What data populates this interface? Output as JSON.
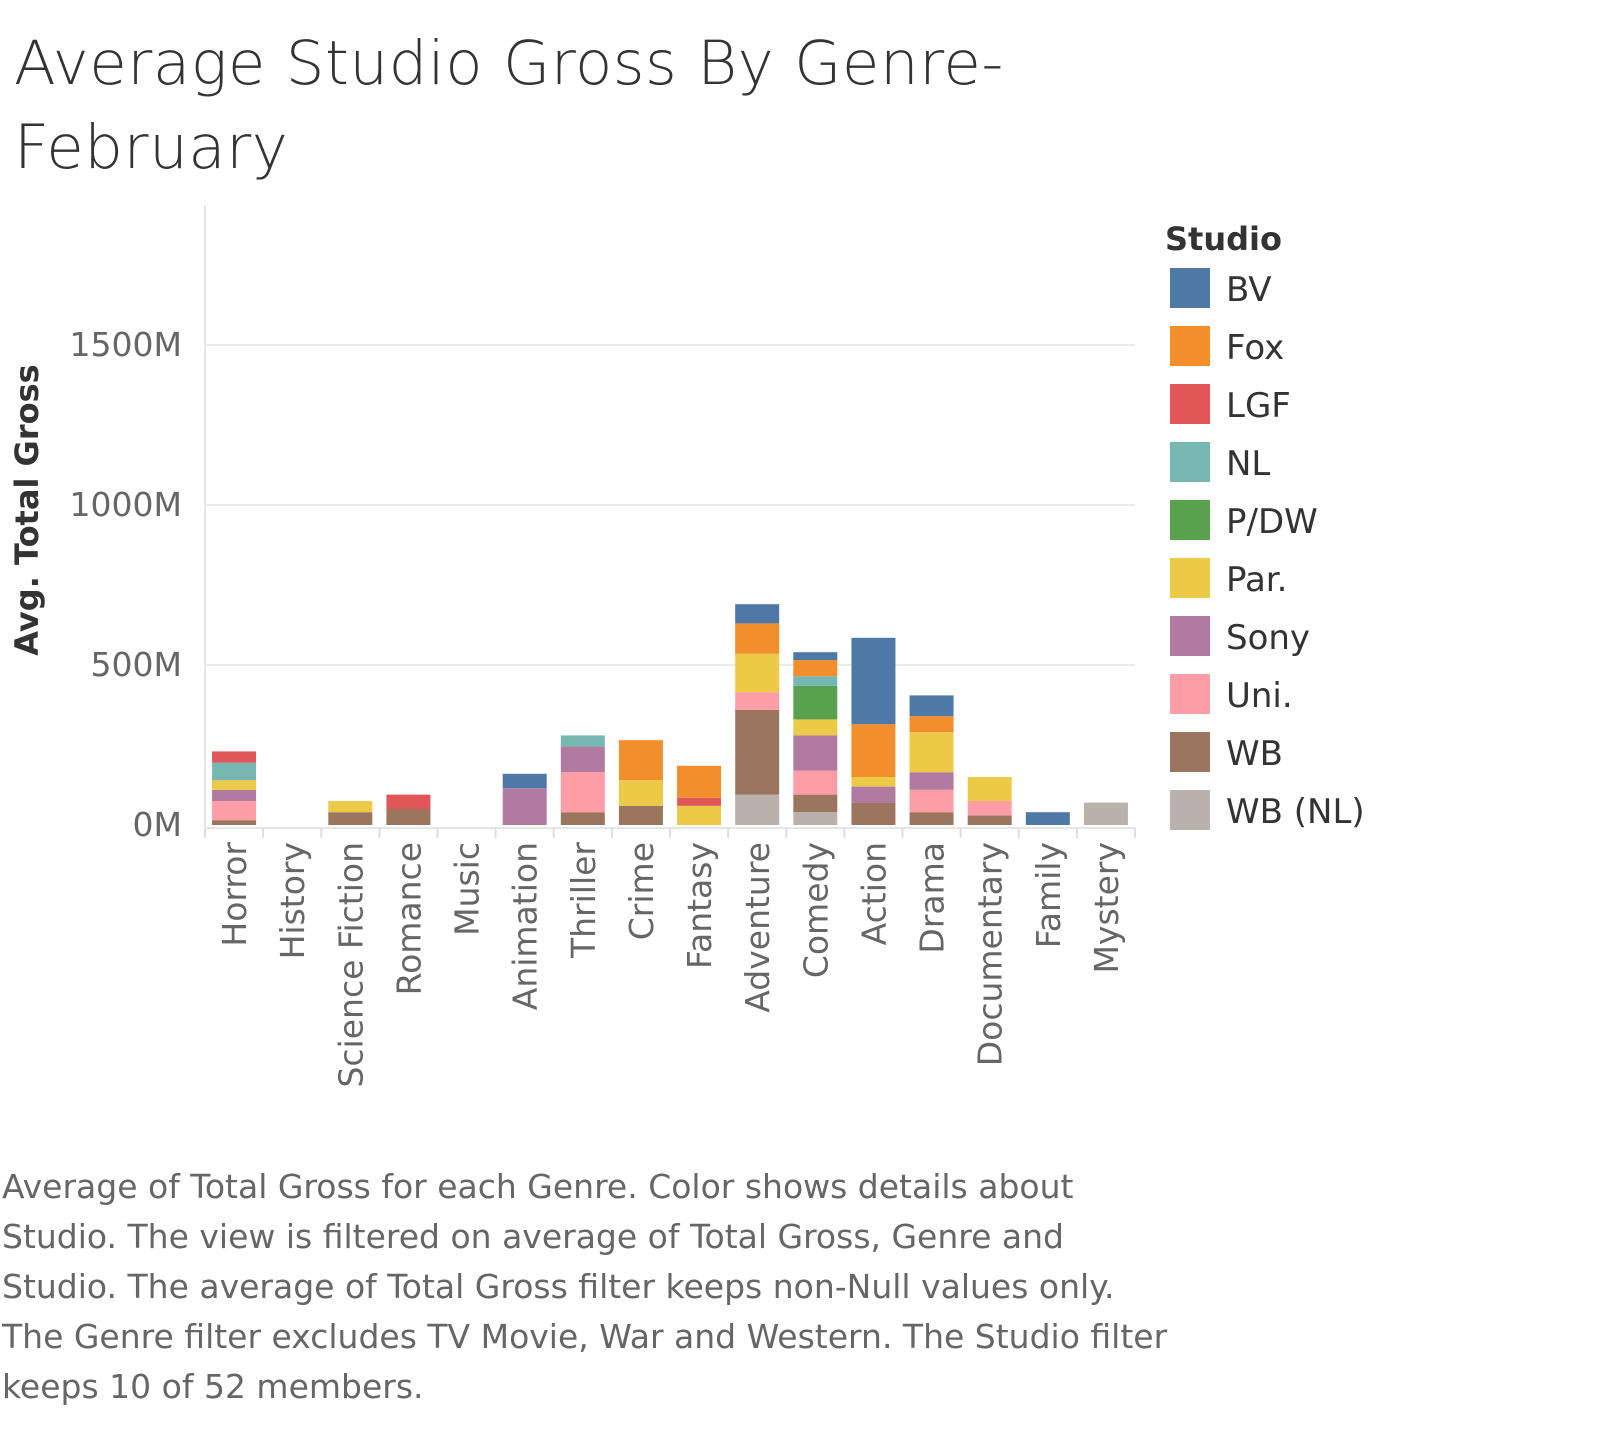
{
  "title": "Average Studio Gross By Genre- February",
  "caption": "Average of Total Gross for each Genre.  Color shows details about Studio. The view is filtered on average of Total Gross, Genre and Studio. The average of Total Gross filter keeps non-Null values only. The Genre filter excludes TV Movie, War and Western. The Studio filter keeps 10 of 52 members.",
  "colors": {
    "BV": "#4e79a7",
    "Fox": "#f28e2b",
    "LGF": "#e15759",
    "NL": "#76b7b2",
    "P/DW": "#59a14f",
    "Par.": "#edc948",
    "Sony": "#b07aa1",
    "Uni.": "#ff9da7",
    "WB": "#9c755f",
    "WB (NL)": "#bab0ac"
  },
  "chart_data": {
    "type": "bar",
    "stacked": true,
    "ylabel": "Avg. Total Gross",
    "yticks": [
      "0M",
      "500M",
      "1000M",
      "1500M"
    ],
    "ytick_values": [
      0,
      500,
      1000,
      1500
    ],
    "ylim": [
      0,
      1800
    ],
    "grid": true,
    "legend": {
      "title": "Studio",
      "position": "right",
      "entries": [
        "BV",
        "Fox",
        "LGF",
        "NL",
        "P/DW",
        "Par.",
        "Sony",
        "Uni.",
        "WB",
        "WB (NL)"
      ]
    },
    "categories": [
      "Horror",
      "History",
      "Science Fiction",
      "Romance",
      "Music",
      "Animation",
      "Thriller",
      "Crime",
      "Fantasy",
      "Adventure",
      "Comedy",
      "Action",
      "Drama",
      "Documentary",
      "Family",
      "Mystery"
    ],
    "stack_order": [
      "WB (NL)",
      "WB",
      "Uni.",
      "Sony",
      "Par.",
      "P/DW",
      "NL",
      "LGF",
      "Fox",
      "BV"
    ],
    "series": [
      {
        "name": "BV",
        "values": [
          0,
          0,
          0,
          0,
          0,
          45,
          0,
          0,
          0,
          60,
          25,
          270,
          65,
          0,
          40,
          0
        ]
      },
      {
        "name": "Fox",
        "values": [
          0,
          0,
          0,
          0,
          0,
          0,
          0,
          125,
          100,
          95,
          50,
          165,
          50,
          0,
          0,
          0
        ]
      },
      {
        "name": "LGF",
        "values": [
          35,
          0,
          0,
          45,
          0,
          0,
          0,
          0,
          25,
          0,
          0,
          0,
          0,
          0,
          0,
          0
        ]
      },
      {
        "name": "NL",
        "values": [
          55,
          0,
          0,
          0,
          0,
          0,
          35,
          0,
          0,
          0,
          30,
          0,
          0,
          0,
          0,
          0
        ]
      },
      {
        "name": "P/DW",
        "values": [
          0,
          0,
          0,
          0,
          0,
          0,
          0,
          0,
          0,
          0,
          105,
          0,
          0,
          0,
          0,
          0
        ]
      },
      {
        "name": "Par.",
        "values": [
          30,
          0,
          35,
          0,
          0,
          0,
          0,
          80,
          60,
          120,
          50,
          30,
          125,
          75,
          0,
          0
        ]
      },
      {
        "name": "Sony",
        "values": [
          35,
          0,
          0,
          0,
          0,
          115,
          80,
          0,
          0,
          0,
          110,
          50,
          55,
          0,
          0,
          0
        ]
      },
      {
        "name": "Uni.",
        "values": [
          60,
          0,
          0,
          0,
          0,
          0,
          125,
          0,
          0,
          55,
          75,
          0,
          70,
          45,
          0,
          0
        ]
      },
      {
        "name": "WB",
        "values": [
          15,
          0,
          40,
          50,
          0,
          0,
          40,
          60,
          0,
          265,
          55,
          70,
          40,
          30,
          0,
          0
        ]
      },
      {
        "name": "WB (NL)",
        "values": [
          0,
          0,
          0,
          0,
          0,
          0,
          0,
          0,
          0,
          95,
          40,
          0,
          0,
          0,
          0,
          70
        ]
      }
    ]
  }
}
